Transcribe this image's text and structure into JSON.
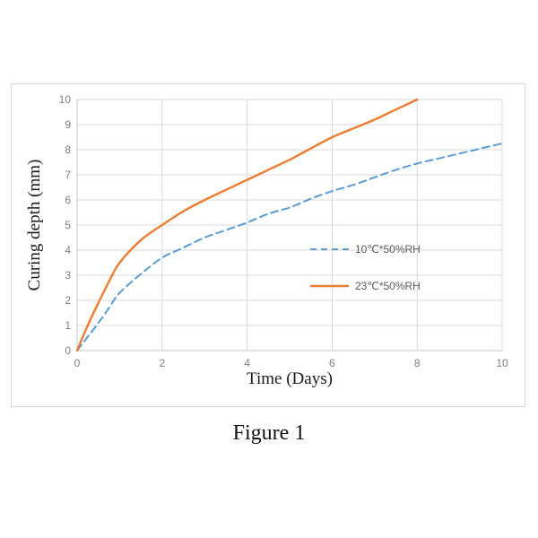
{
  "caption": "Figure 1",
  "chart_data": {
    "type": "line",
    "title": "",
    "xlabel": "Time (Days)",
    "ylabel": "Curing depth (mm)",
    "xlim": [
      0,
      10
    ],
    "ylim": [
      0,
      10
    ],
    "xticks": [
      0,
      2,
      4,
      6,
      8,
      10
    ],
    "yticks": [
      0,
      1,
      2,
      3,
      4,
      5,
      6,
      7,
      8,
      9,
      10
    ],
    "grid": true,
    "legend_position": "inside-center-right",
    "colors": {
      "gridline": "#d9d9d9",
      "axis_line": "#c6c6c6",
      "tick_label": "#808080",
      "legend_text": "#595959",
      "frame_border": "#d9d9d9",
      "series_blue": "#5b9bd5",
      "series_orange": "#ed7d31"
    },
    "series": [
      {
        "name": "10℃*50%RH",
        "color": "#5b9bd5",
        "style": "dashed",
        "points": [
          [
            0,
            0
          ],
          [
            0.25,
            0.55
          ],
          [
            0.5,
            1.1
          ],
          [
            0.75,
            1.7
          ],
          [
            1,
            2.3
          ],
          [
            1.5,
            3.05
          ],
          [
            2,
            3.7
          ],
          [
            2.5,
            4.1
          ],
          [
            3,
            4.5
          ],
          [
            3.5,
            4.8
          ],
          [
            4,
            5.1
          ],
          [
            4.5,
            5.45
          ],
          [
            5,
            5.7
          ],
          [
            5.5,
            6.05
          ],
          [
            6,
            6.35
          ],
          [
            6.5,
            6.6
          ],
          [
            7,
            6.9
          ],
          [
            7.5,
            7.2
          ],
          [
            8,
            7.45
          ],
          [
            8.5,
            7.65
          ],
          [
            9,
            7.85
          ],
          [
            9.5,
            8.05
          ],
          [
            10,
            8.25
          ]
        ]
      },
      {
        "name": "23℃*50%RH",
        "color": "#ed7d31",
        "style": "solid",
        "points": [
          [
            0,
            0
          ],
          [
            0.25,
            1.0
          ],
          [
            0.5,
            1.9
          ],
          [
            0.75,
            2.75
          ],
          [
            1,
            3.5
          ],
          [
            1.5,
            4.4
          ],
          [
            2,
            5.0
          ],
          [
            2.5,
            5.55
          ],
          [
            3,
            6.0
          ],
          [
            3.5,
            6.4
          ],
          [
            4,
            6.8
          ],
          [
            4.5,
            7.2
          ],
          [
            5,
            7.6
          ],
          [
            5.5,
            8.05
          ],
          [
            6,
            8.5
          ],
          [
            6.5,
            8.85
          ],
          [
            7,
            9.2
          ],
          [
            7.5,
            9.6
          ],
          [
            8,
            10
          ]
        ]
      }
    ]
  }
}
